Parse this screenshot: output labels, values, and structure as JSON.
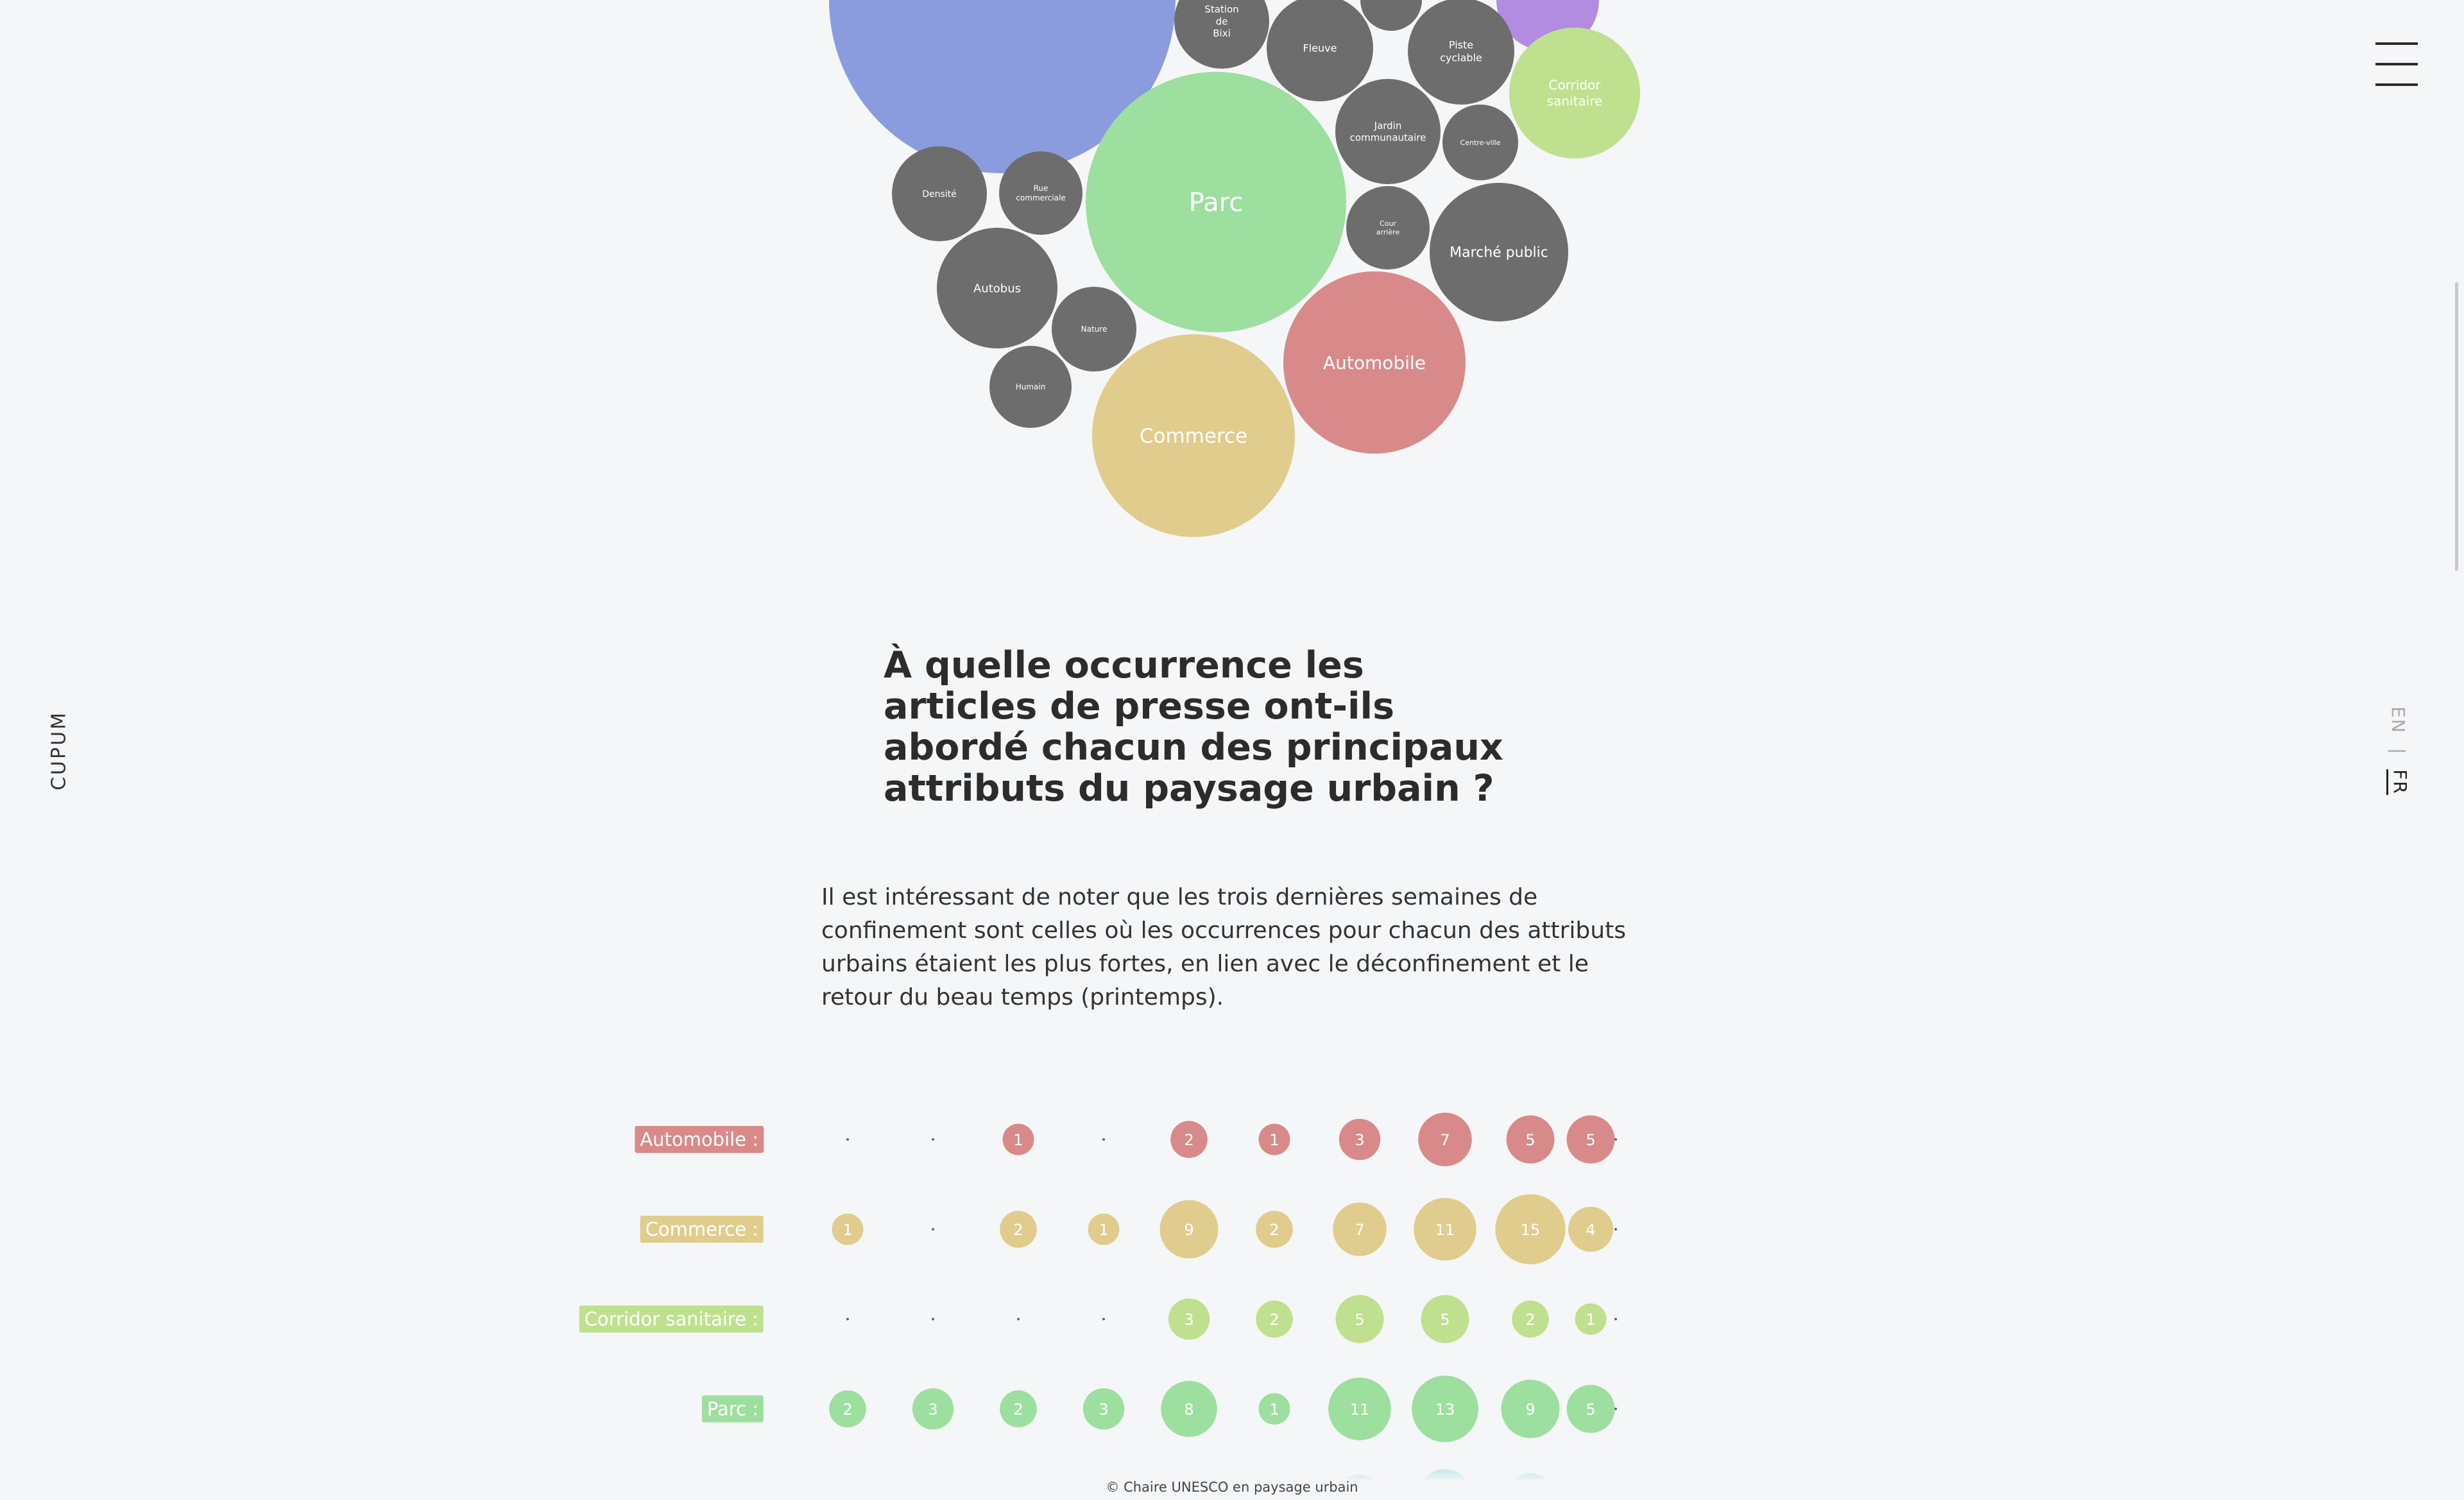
{
  "sidebar": {
    "brand": "CUPUM"
  },
  "lang": {
    "en": "EN",
    "sep": "|",
    "fr": "FR"
  },
  "bubble_chart": {
    "bubbles": [
      {
        "label": "",
        "color": "#8a9cde"
      },
      {
        "label": "",
        "color": "#6d6d6d"
      },
      {
        "label": "",
        "color": "#b28ce0"
      },
      {
        "label": "Station de Bixi",
        "color": "#6d6d6d"
      },
      {
        "label": "Fleuve",
        "color": "#6d6d6d"
      },
      {
        "label": "Piste cyclable",
        "color": "#6d6d6d"
      },
      {
        "label": "Corridor sanitaire",
        "color": "#bfe08e"
      },
      {
        "label": "Jardin communautaire",
        "color": "#6d6d6d"
      },
      {
        "label": "Centre-ville",
        "color": "#6d6d6d"
      },
      {
        "label": "Parc",
        "color": "#9ddf9e"
      },
      {
        "label": "Densité",
        "color": "#6d6d6d"
      },
      {
        "label": "Rue commerciale",
        "color": "#6d6d6d"
      },
      {
        "label": "Cour arrière",
        "color": "#6d6d6d"
      },
      {
        "label": "Marché public",
        "color": "#6d6d6d"
      },
      {
        "label": "Autobus",
        "color": "#6d6d6d"
      },
      {
        "label": "Nature",
        "color": "#6d6d6d"
      },
      {
        "label": "Humain",
        "color": "#6d6d6d"
      },
      {
        "label": "Automobile",
        "color": "#d88a8a"
      },
      {
        "label": "Commerce",
        "color": "#e0cc8c"
      }
    ]
  },
  "section": {
    "title": "À quelle occurrence les articles de presse ont-ils abordé chacun des principaux attributs du paysage urbain ?",
    "text": "Il est intéressant de noter que les trois dernières semaines de confinement sont celles où les occurrences pour chacun des attributs urbains étaient les plus fortes, en lien avec le déconfinement et le retour du beau temps (printemps)."
  },
  "chart_data": {
    "type": "scatter",
    "series": [
      {
        "name": "Automobile :",
        "color": "#d88a8a",
        "values": [
          0,
          0,
          1,
          0,
          2,
          1,
          3,
          7,
          5,
          5,
          0
        ]
      },
      {
        "name": "Commerce :",
        "color": "#e0cc8c",
        "values": [
          1,
          0,
          2,
          1,
          9,
          2,
          7,
          11,
          15,
          4,
          0
        ]
      },
      {
        "name": "Corridor sanitaire :",
        "color": "#bfe08e",
        "values": [
          0,
          0,
          0,
          0,
          3,
          2,
          5,
          5,
          2,
          1,
          0
        ]
      },
      {
        "name": "Parc :",
        "color": "#9ddf9e",
        "values": [
          2,
          3,
          2,
          3,
          8,
          1,
          11,
          13,
          9,
          5,
          0
        ]
      }
    ]
  },
  "footer": {
    "text": "© Chaire UNESCO en paysage urbain"
  }
}
